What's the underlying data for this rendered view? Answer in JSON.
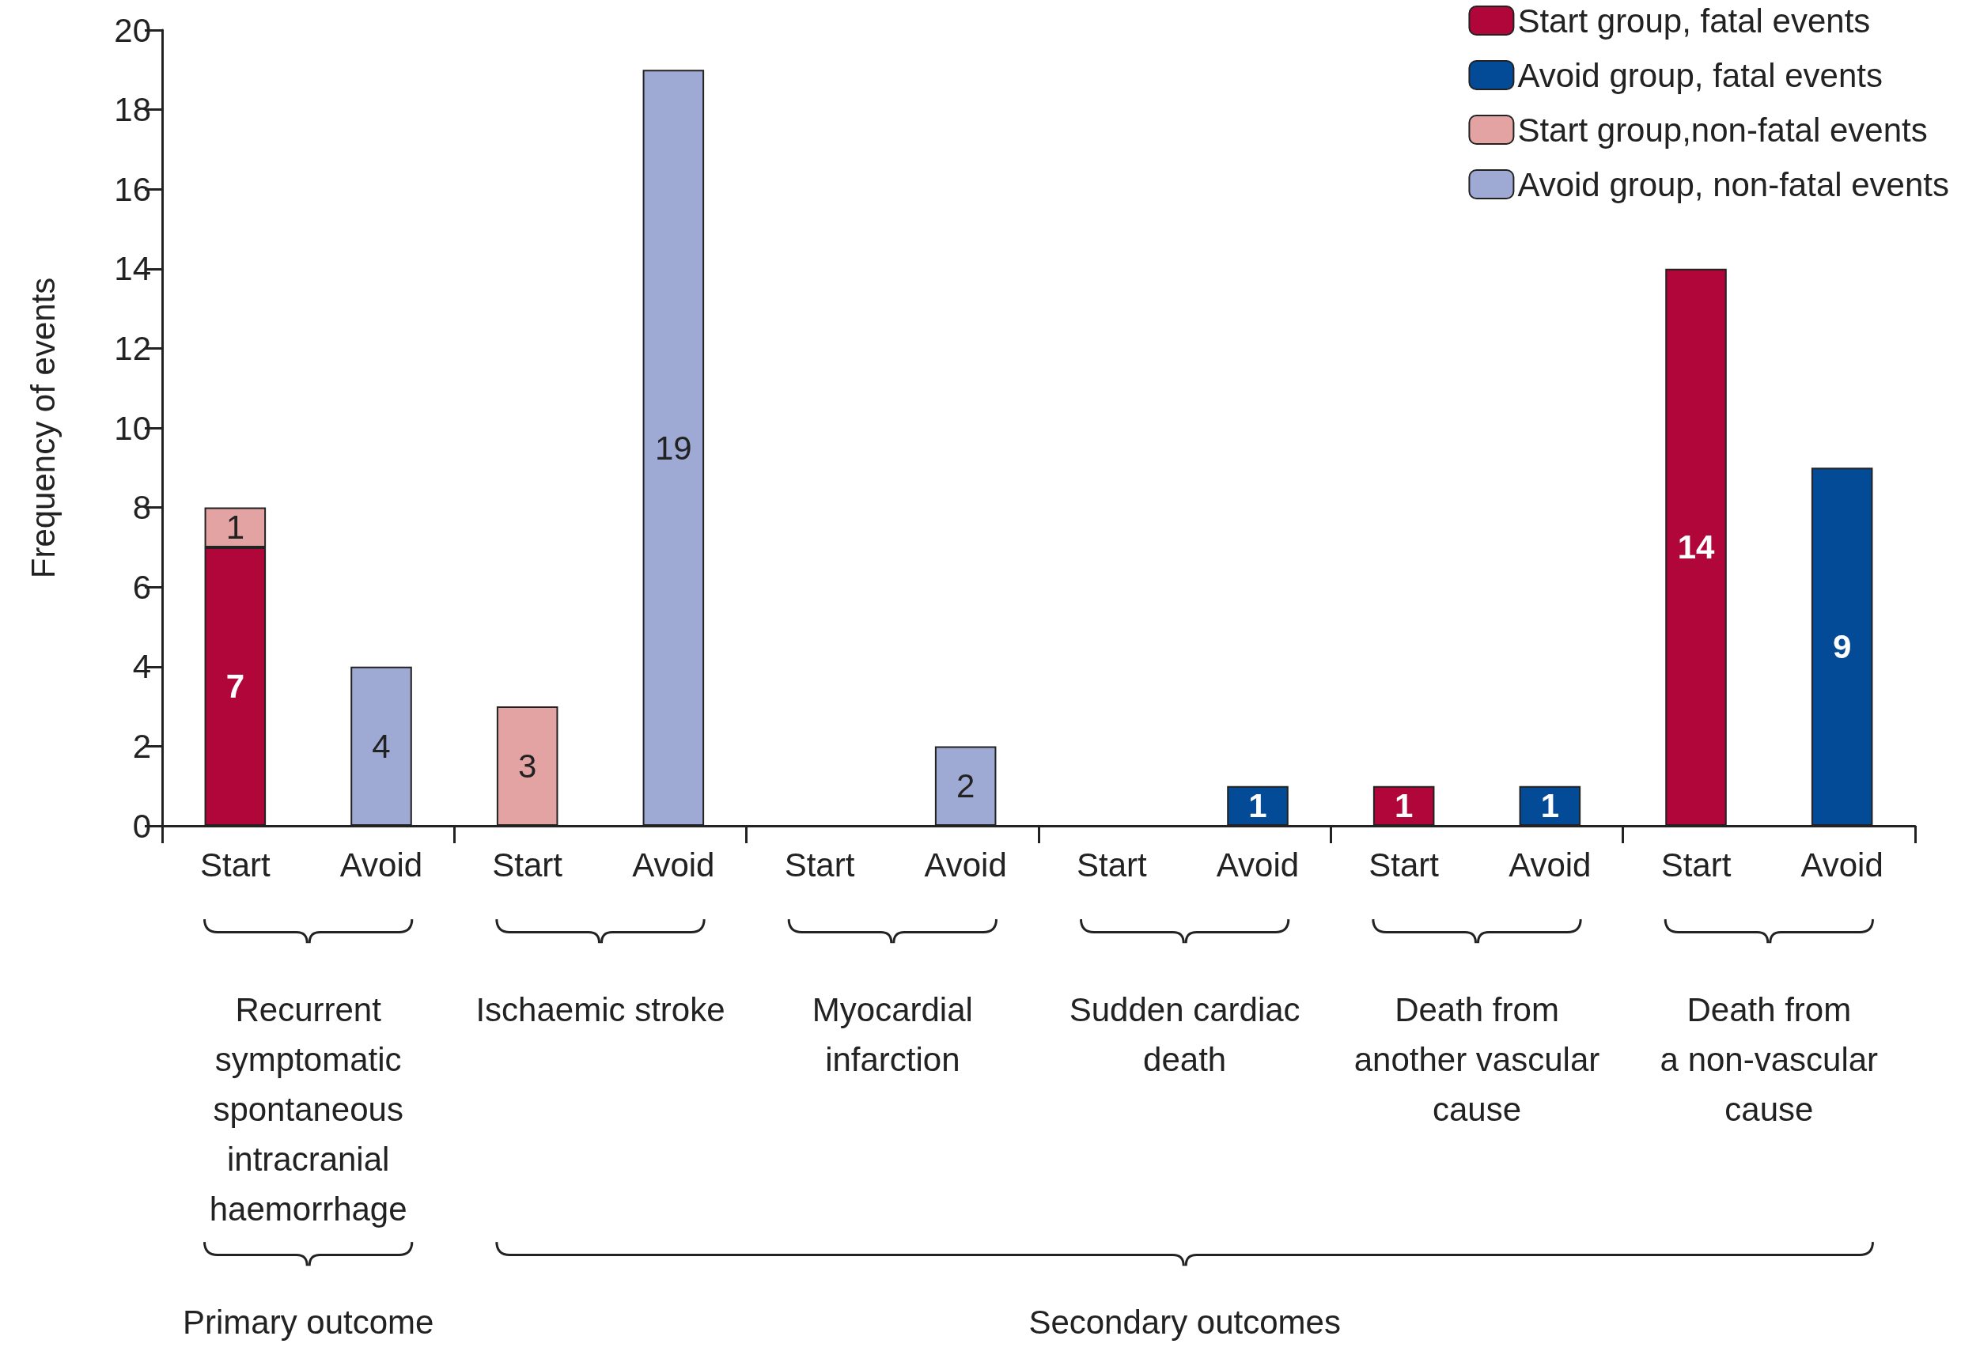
{
  "chart_data": {
    "type": "bar",
    "stacked": true,
    "ylabel": "Frequency of events",
    "categories": [
      "Start",
      "Avoid",
      "Start",
      "Avoid",
      "Start",
      "Avoid",
      "Start",
      "Avoid",
      "Start",
      "Avoid",
      "Start",
      "Avoid"
    ],
    "series": [
      {
        "name": "Start group, fatal events",
        "color": "#b0063a",
        "values": [
          7,
          null,
          null,
          null,
          null,
          null,
          null,
          null,
          1,
          null,
          14,
          null
        ]
      },
      {
        "name": "Avoid group, fatal events",
        "color": "#034b96",
        "values": [
          null,
          null,
          null,
          null,
          null,
          null,
          null,
          1,
          null,
          1,
          null,
          9
        ]
      },
      {
        "name": "Start group,non-fatal events",
        "color": "#e3a3a3",
        "values": [
          1,
          null,
          3,
          null,
          null,
          null,
          null,
          null,
          null,
          null,
          null,
          null
        ]
      },
      {
        "name": "Avoid group, non-fatal events",
        "color": "#9eaad4",
        "values": [
          null,
          4,
          null,
          19,
          null,
          2,
          null,
          null,
          null,
          null,
          null,
          null
        ]
      }
    ],
    "ylim": [
      0,
      20
    ],
    "yticks": [
      0,
      2,
      4,
      6,
      8,
      10,
      12,
      14,
      16,
      18,
      20
    ],
    "grid": false,
    "legend": "top right",
    "data_labels": true,
    "annotations": [
      "Recurrent\nsymptomatic\nspontaneous\nintracranial\nhaemorrhage",
      "Ischaemic stroke",
      "Myocardial\ninfarction",
      "Sudden cardiac\ndeath",
      "Death from\nanother vascular\ncause",
      "Death from\na non-vascular\ncause",
      "Primary outcome",
      "Secondary outcomes"
    ]
  }
}
